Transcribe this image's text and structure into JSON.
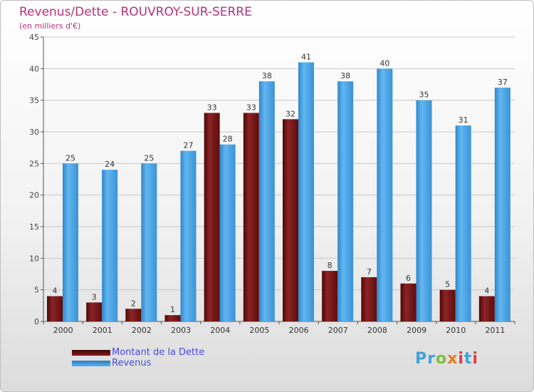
{
  "chart_data": {
    "type": "bar",
    "title": "Revenus/Dette - ROUVROY-SUR-SERRE",
    "subtitle": "(en milliers d'€)",
    "xlabel": "",
    "ylabel": "",
    "ylim": [
      0,
      45
    ],
    "yticks": [
      0,
      5,
      10,
      15,
      20,
      25,
      30,
      35,
      40,
      45
    ],
    "grid": true,
    "legend_position": "bottom-left",
    "categories": [
      "2000",
      "2001",
      "2002",
      "2003",
      "2004",
      "2005",
      "2006",
      "2007",
      "2008",
      "2009",
      "2010",
      "2011"
    ],
    "series": [
      {
        "name": "Montant de la Dette",
        "color": "#7a1616",
        "values": [
          4,
          3,
          2,
          1,
          33,
          33,
          32,
          8,
          7,
          6,
          5,
          4
        ]
      },
      {
        "name": "Revenus",
        "color": "#4da6e6",
        "values": [
          25,
          24,
          25,
          27,
          28,
          38,
          41,
          38,
          40,
          35,
          31,
          37
        ]
      }
    ]
  },
  "logo": {
    "text": "Proxiti"
  },
  "colors": {
    "title": "#b5317a",
    "legend_text": "#4a4adf",
    "grid": "#c8c8c8"
  }
}
